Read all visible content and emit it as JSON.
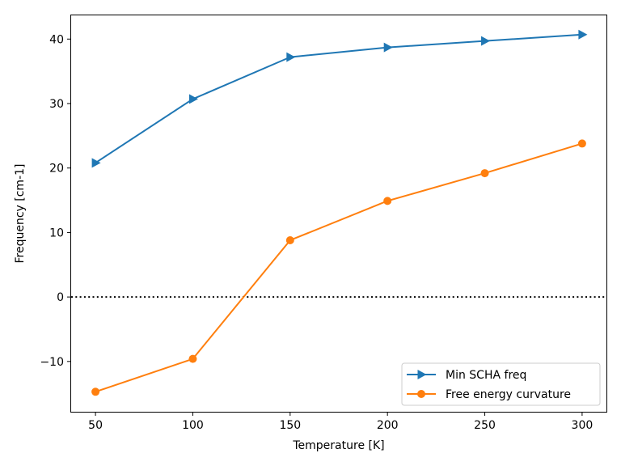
{
  "chart_data": {
    "type": "line",
    "xlabel": "Temperature [K]",
    "ylabel": "Frequency [cm-1]",
    "xlim": [
      37.5,
      312.5
    ],
    "ylim": [
      -17.8,
      43.8
    ],
    "x": [
      50,
      100,
      150,
      200,
      250,
      300
    ],
    "xticks": [
      50,
      100,
      150,
      200,
      250,
      300
    ],
    "yticks": [
      -10,
      0,
      10,
      20,
      30,
      40
    ],
    "ytick_labels": [
      "−10",
      "0",
      "10",
      "20",
      "30",
      "40"
    ],
    "series": [
      {
        "name": "Min SCHA freq",
        "values": [
          20.8,
          30.7,
          37.2,
          38.7,
          39.7,
          40.7
        ],
        "color": "#1f77b4",
        "marker": "triangle-right"
      },
      {
        "name": "Free energy curvature",
        "values": [
          -14.7,
          -9.6,
          8.8,
          14.9,
          19.2,
          23.8
        ],
        "color": "#ff7f0e",
        "marker": "circle"
      }
    ],
    "reference_line": {
      "y": 0,
      "style": "dotted",
      "color": "#000000"
    },
    "grid": false,
    "legend_position": "lower-right"
  }
}
